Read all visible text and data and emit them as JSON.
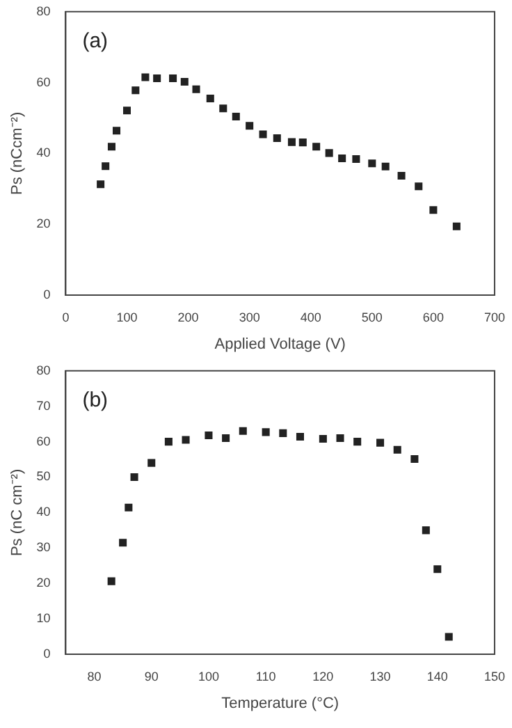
{
  "chart_data": [
    {
      "type": "scatter",
      "xlabel": "Applied Voltage (V)",
      "ylabel": "Ps (nCcm⁻²)",
      "annotations": [
        "(a)"
      ],
      "x": [
        57,
        65,
        75,
        83,
        100,
        114,
        130,
        149,
        175,
        194,
        213,
        236,
        257,
        278,
        300,
        322,
        345,
        369,
        387,
        409,
        430,
        451,
        474,
        500,
        522,
        548,
        576,
        600,
        638
      ],
      "series": [
        {
          "color": "#222222",
          "values": [
            31.3,
            36.4,
            41.9,
            46.4,
            52.1,
            57.8,
            61.5,
            61.2,
            61.2,
            60.2,
            58.1,
            55.5,
            52.7,
            50.4,
            47.8,
            45.4,
            44.3,
            43.2,
            43.1,
            41.9,
            40.1,
            38.6,
            38.4,
            37.2,
            36.3,
            33.7,
            30.7,
            24.0,
            19.4
          ]
        }
      ],
      "xlim": [
        0,
        700
      ],
      "xticks": [
        0,
        100,
        200,
        300,
        400,
        500,
        600,
        700
      ],
      "ylim": [
        0,
        80
      ],
      "yticks": [
        0,
        20,
        40,
        60,
        80
      ],
      "grid": false,
      "legend": false,
      "marker": "square"
    },
    {
      "type": "scatter",
      "xlabel": "Temperature (°C)",
      "ylabel": "Ps (nC cm⁻²)",
      "annotations": [
        "(b)"
      ],
      "x": [
        83,
        85,
        86,
        87,
        90,
        93,
        96,
        100,
        103,
        106,
        110,
        113,
        116,
        120,
        123,
        126,
        130,
        133,
        136,
        138,
        140,
        142
      ],
      "series": [
        {
          "color": "#222222",
          "values": [
            20.6,
            31.5,
            41.4,
            50.0,
            54.0,
            60.0,
            60.5,
            61.8,
            61.0,
            63.0,
            62.7,
            62.4,
            61.4,
            60.8,
            61.0,
            60.0,
            59.7,
            57.7,
            55.1,
            35.0,
            24.0,
            4.9
          ]
        }
      ],
      "xlim": [
        75,
        150
      ],
      "xticks": [
        80,
        90,
        100,
        110,
        120,
        130,
        140,
        150
      ],
      "ylim": [
        0,
        80
      ],
      "yticks": [
        0,
        10,
        20,
        30,
        40,
        50,
        60,
        70,
        80
      ],
      "grid": false,
      "legend": false,
      "marker": "square"
    }
  ]
}
